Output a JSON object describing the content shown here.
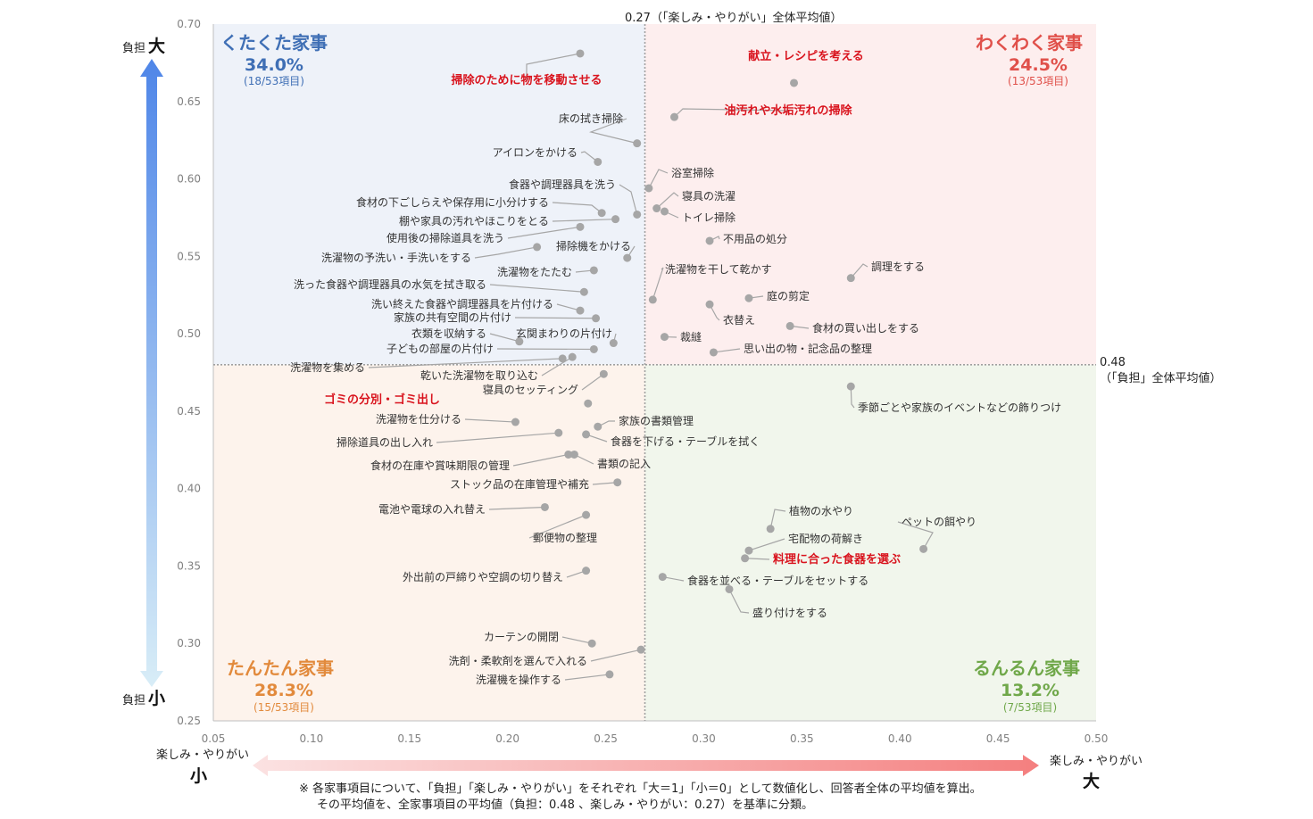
{
  "chart_data": {
    "type": "scatter",
    "xlim": [
      0.05,
      0.5
    ],
    "ylim": [
      0.25,
      0.7
    ],
    "x_ticks": [
      "0.05",
      "0.10",
      "0.15",
      "0.20",
      "0.25",
      "0.30",
      "0.35",
      "0.40",
      "0.45",
      "0.50"
    ],
    "y_ticks": [
      "0.70",
      "0.65",
      "0.60",
      "0.55",
      "0.50",
      "0.45",
      "0.40",
      "0.35",
      "0.30",
      "0.25"
    ],
    "grid": false,
    "reference_lines": {
      "x": 0.27,
      "x_label": "0.27（「楽しみ・やりがい」全体平均値）",
      "y": 0.48,
      "y_label_value": "0.48",
      "y_label_text": "（「負担」全体平均値）"
    },
    "quadrants": [
      {
        "name": "くたくた家事",
        "pct": "34.0%",
        "sub": "(18/53項目)",
        "color": "#3f6fb5",
        "bg": "#eef2f9"
      },
      {
        "name": "わくわく家事",
        "pct": "24.5%",
        "sub": "(13/53項目)",
        "color": "#e0504a",
        "bg": "#fdeeee"
      },
      {
        "name": "たんたん家事",
        "pct": "28.3%",
        "sub": "(15/53項目)",
        "color": "#e28a3c",
        "bg": "#fdf3ec"
      },
      {
        "name": "るんるん家事",
        "pct": "13.2%",
        "sub": "(7/53項目)",
        "color": "#70a84a",
        "bg": "#f1f6ec"
      }
    ],
    "points": [
      {
        "label": "掃除のために物を移動させる",
        "x": 0.237,
        "y": 0.681,
        "hl": true
      },
      {
        "label": "献立・レシピを考える",
        "x": 0.346,
        "y": 0.662,
        "hl": true
      },
      {
        "label": "油汚れや水垢汚れの掃除",
        "x": 0.285,
        "y": 0.64,
        "hl": true
      },
      {
        "label": "床の拭き掃除",
        "x": 0.266,
        "y": 0.623
      },
      {
        "label": "アイロンをかける",
        "x": 0.246,
        "y": 0.611
      },
      {
        "label": "浴室掃除",
        "x": 0.272,
        "y": 0.594
      },
      {
        "label": "食器や調理器具を洗う",
        "x": 0.266,
        "y": 0.577
      },
      {
        "label": "寝具の洗濯",
        "x": 0.276,
        "y": 0.581
      },
      {
        "label": "食材の下ごしらえや保存用に小分けする",
        "x": 0.248,
        "y": 0.578
      },
      {
        "label": "トイレ掃除",
        "x": 0.28,
        "y": 0.579
      },
      {
        "label": "棚や家具の汚れやほこりをとる",
        "x": 0.255,
        "y": 0.574
      },
      {
        "label": "使用後の掃除道具を洗う",
        "x": 0.237,
        "y": 0.569
      },
      {
        "label": "不用品の処分",
        "x": 0.303,
        "y": 0.56
      },
      {
        "label": "洗濯物の予洗い・手洗いをする",
        "x": 0.215,
        "y": 0.556
      },
      {
        "label": "掃除機をかける",
        "x": 0.261,
        "y": 0.549
      },
      {
        "label": "洗濯物をたたむ",
        "x": 0.244,
        "y": 0.541
      },
      {
        "label": "洗濯物を干して乾かす",
        "x": 0.274,
        "y": 0.522
      },
      {
        "label": "調理をする",
        "x": 0.375,
        "y": 0.536
      },
      {
        "label": "洗った食器や調理器具の水気を拭き取る",
        "x": 0.239,
        "y": 0.527
      },
      {
        "label": "庭の剪定",
        "x": 0.323,
        "y": 0.523
      },
      {
        "label": "洗い終えた食器や調理器具を片付ける",
        "x": 0.237,
        "y": 0.515
      },
      {
        "label": "衣替え",
        "x": 0.303,
        "y": 0.519
      },
      {
        "label": "家族の共有空間の片付け",
        "x": 0.245,
        "y": 0.51
      },
      {
        "label": "食材の買い出しをする",
        "x": 0.344,
        "y": 0.505
      },
      {
        "label": "衣類を収納する",
        "x": 0.206,
        "y": 0.495
      },
      {
        "label": "玄関まわりの片付け",
        "x": 0.254,
        "y": 0.494
      },
      {
        "label": "裁縫",
        "x": 0.28,
        "y": 0.498
      },
      {
        "label": "子どもの部屋の片付け",
        "x": 0.244,
        "y": 0.49
      },
      {
        "label": "思い出の物・記念品の整理",
        "x": 0.305,
        "y": 0.488
      },
      {
        "label": "洗濯物を集める",
        "x": 0.228,
        "y": 0.484
      },
      {
        "label": "乾いた洗濯物を取り込む",
        "x": 0.233,
        "y": 0.485
      },
      {
        "label": "寝具のセッティング",
        "x": 0.249,
        "y": 0.474
      },
      {
        "label": "季節ごとや家族のイベントなどの飾りつけ",
        "x": 0.375,
        "y": 0.466
      },
      {
        "label": "ゴミの分別・ゴミ出し",
        "x": 0.241,
        "y": 0.455,
        "hl": true
      },
      {
        "label": "洗濯物を仕分ける",
        "x": 0.204,
        "y": 0.443
      },
      {
        "label": "家族の書類管理",
        "x": 0.246,
        "y": 0.44
      },
      {
        "label": "掃除道具の出し入れ",
        "x": 0.226,
        "y": 0.436
      },
      {
        "label": "食器を下げる・テーブルを拭く",
        "x": 0.24,
        "y": 0.435
      },
      {
        "label": "食材の在庫や賞味期限の管理",
        "x": 0.231,
        "y": 0.422
      },
      {
        "label": "書類の記入",
        "x": 0.234,
        "y": 0.422
      },
      {
        "label": "ストック品の在庫管理や補充",
        "x": 0.256,
        "y": 0.404
      },
      {
        "label": "電池や電球の入れ替え",
        "x": 0.219,
        "y": 0.388
      },
      {
        "label": "郵便物の整理",
        "x": 0.24,
        "y": 0.383
      },
      {
        "label": "植物の水やり",
        "x": 0.334,
        "y": 0.374
      },
      {
        "label": "ペットの餌やり",
        "x": 0.412,
        "y": 0.361
      },
      {
        "label": "宅配物の荷解き",
        "x": 0.323,
        "y": 0.36
      },
      {
        "label": "料理に合った食器を選ぶ",
        "x": 0.321,
        "y": 0.355,
        "hl": true
      },
      {
        "label": "外出前の戸締りや空調の切り替え",
        "x": 0.24,
        "y": 0.347
      },
      {
        "label": "食器を並べる・テーブルをセットする",
        "x": 0.279,
        "y": 0.343
      },
      {
        "label": "盛り付けをする",
        "x": 0.313,
        "y": 0.335
      },
      {
        "label": "カーテンの開閉",
        "x": 0.243,
        "y": 0.3
      },
      {
        "label": "洗剤・柔軟剤を選んで入れる",
        "x": 0.268,
        "y": 0.296
      },
      {
        "label": "洗濯機を操作する",
        "x": 0.252,
        "y": 0.28
      }
    ]
  },
  "axes": {
    "y_top_small": "負担",
    "y_top_big": "大",
    "y_bottom_small": "負担",
    "y_bottom_big": "小",
    "x_left_small": "楽しみ・やりがい",
    "x_left_big": "小",
    "x_right_small": "楽しみ・やりがい",
    "x_right_big": "大"
  },
  "note": {
    "line1": "※ 各家事項目について、「負担」「楽しみ・やりがい」をそれぞれ「大＝1」「小＝0」として数値化し、回答者全体の平均値を算出。",
    "line2": "その平均値を、全家事項目の平均値（負担：0.48 、楽しみ・やりがい：0.27）を基準に分類。"
  },
  "colors": {
    "point": "#a6a6a6",
    "ref_line": "#a0a0a0",
    "axis": "#bfbfbf",
    "highlight": "#d9141e",
    "y_arrow_top": "#4f86e8",
    "y_arrow_bottom": "#d8edf7",
    "x_arrow_left": "#fbe2e2",
    "x_arrow_right": "#f47f7f"
  }
}
